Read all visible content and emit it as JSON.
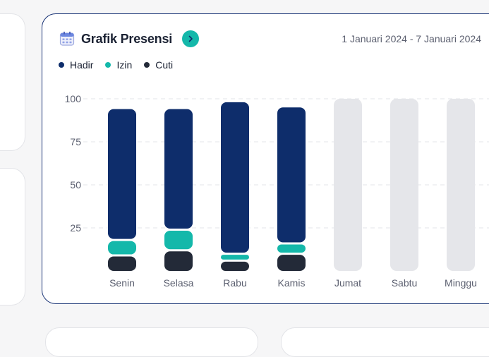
{
  "header": {
    "title": "Grafik Presensi",
    "date_range": "1 Januari 2024 - 7 Januari 2024",
    "calendar_icon": "calendar-icon",
    "nav_icon": "chevron-right-icon"
  },
  "colors": {
    "hadir": "#0e2d6b",
    "izin": "#14b8aa",
    "cuti": "#232a38",
    "empty": "#e5e6ea",
    "accent": "#14b8aa",
    "card_border": "#1b3577"
  },
  "chart_data": {
    "type": "bar",
    "stacked": true,
    "categories": [
      "Senin",
      "Selasa",
      "Rabu",
      "Kamis",
      "Jumat",
      "Sabtu",
      "Minggu"
    ],
    "series": [
      {
        "name": "Cuti",
        "values": [
          9,
          12,
          6,
          10,
          0,
          0,
          0
        ]
      },
      {
        "name": "Izin",
        "values": [
          9,
          12,
          4,
          6,
          0,
          0,
          0
        ]
      },
      {
        "name": "Hadir",
        "values": [
          76,
          70,
          88,
          79,
          0,
          0,
          0
        ]
      }
    ],
    "yticks": [
      25,
      50,
      75,
      100
    ],
    "ylim": [
      0,
      100
    ],
    "grid": true,
    "legend_position": "top-left"
  }
}
